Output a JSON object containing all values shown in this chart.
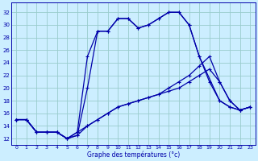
{
  "xlabel": "Graphe des températures (°c)",
  "bg_color": "#cceeff",
  "grid_color": "#99cccc",
  "line_color": "#0000aa",
  "xmin": -0.5,
  "xmax": 23.5,
  "ymin": 11,
  "ymax": 33.5,
  "yticks": [
    12,
    14,
    16,
    18,
    20,
    22,
    24,
    26,
    28,
    30,
    32
  ],
  "xticks": [
    0,
    1,
    2,
    3,
    4,
    5,
    6,
    7,
    8,
    9,
    10,
    11,
    12,
    13,
    14,
    15,
    16,
    17,
    18,
    19,
    20,
    21,
    22,
    23
  ],
  "series": [
    {
      "x": [
        0,
        1,
        2,
        3,
        4,
        5,
        6,
        7,
        8,
        9,
        10,
        11,
        12,
        13,
        14,
        15,
        16,
        17,
        18,
        20,
        21,
        22,
        23
      ],
      "y": [
        15,
        15,
        13,
        13,
        13,
        12,
        13,
        25,
        29,
        29,
        31,
        31,
        29.5,
        30,
        31,
        32,
        32,
        30,
        25,
        18,
        17,
        16.5,
        17
      ]
    },
    {
      "x": [
        0,
        1,
        2,
        3,
        4,
        5,
        6,
        7,
        8,
        9,
        10,
        11,
        12,
        13,
        14,
        15,
        16,
        17,
        18,
        19,
        20,
        21,
        22,
        23
      ],
      "y": [
        15,
        15,
        13,
        13,
        13,
        12,
        12.5,
        20,
        29,
        29,
        31,
        31,
        29.5,
        30,
        31,
        32,
        32,
        30,
        25,
        21,
        18,
        17,
        16.5,
        17
      ]
    },
    {
      "x": [
        0,
        1,
        2,
        3,
        4,
        5,
        6,
        7,
        8,
        9,
        10,
        11,
        12,
        13,
        14,
        15,
        16,
        17,
        18,
        19,
        20,
        21,
        22,
        23
      ],
      "y": [
        15,
        15,
        13,
        13,
        13,
        12,
        13,
        14,
        15,
        16,
        17,
        17.5,
        18,
        18.5,
        19,
        20,
        21,
        22,
        23.5,
        25,
        21,
        18,
        16.5,
        17
      ]
    },
    {
      "x": [
        0,
        1,
        2,
        3,
        4,
        5,
        6,
        7,
        8,
        9,
        10,
        11,
        12,
        13,
        14,
        15,
        16,
        17,
        18,
        19,
        20,
        21,
        22,
        23
      ],
      "y": [
        15,
        15,
        13,
        13,
        13,
        12,
        12.5,
        14,
        15,
        16,
        17,
        17.5,
        18,
        18.5,
        19,
        19.5,
        20,
        21,
        22,
        23,
        21,
        18,
        16.5,
        17
      ]
    }
  ]
}
